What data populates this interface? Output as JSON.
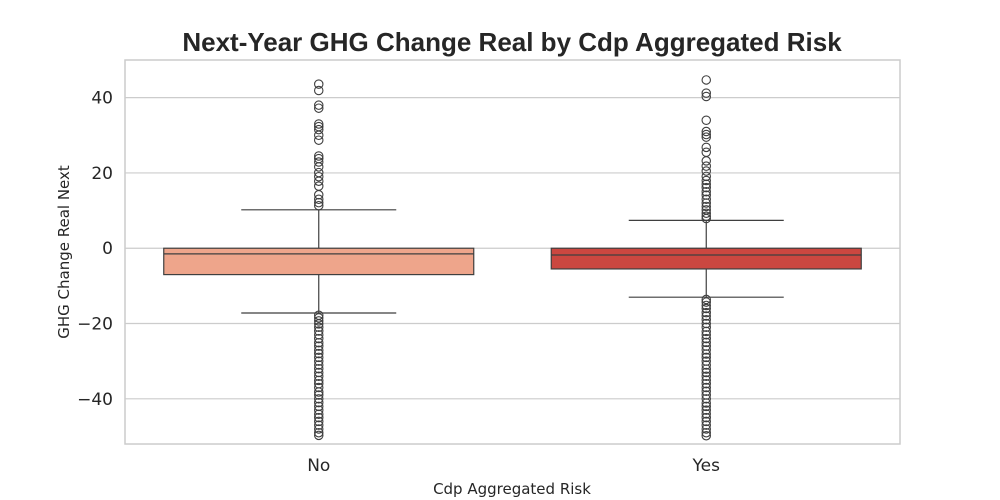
{
  "chart_data": {
    "type": "box",
    "title": "Next-Year GHG Change Real by Cdp Aggregated Risk",
    "xlabel": "Cdp Aggregated Risk",
    "ylabel": "GHG Change Real Next",
    "ylim": [
      -52,
      50
    ],
    "yticks": [
      {
        "value": 40,
        "label": "40"
      },
      {
        "value": 20,
        "label": "20"
      },
      {
        "value": 0,
        "label": "0"
      },
      {
        "value": -20,
        "label": "−20"
      },
      {
        "value": -40,
        "label": "−40"
      }
    ],
    "grid": true,
    "categories": [
      "No",
      "Yes"
    ],
    "boxes": [
      {
        "category": "No",
        "color": "#eea58b",
        "whisker_low": -17.2,
        "q1": -7.0,
        "median": -1.5,
        "q3": 0.0,
        "whisker_high": 10.2,
        "outliers": [
          43.6,
          41.9,
          38.0,
          37.2,
          33.0,
          32.3,
          31.5,
          30.0,
          28.7,
          24.5,
          23.8,
          22.9,
          21.6,
          20.1,
          19.0,
          17.8,
          16.5,
          14.2,
          13.0,
          12.1,
          11.3,
          -17.8,
          -18.5,
          -19.3,
          -20.1,
          -21.0,
          -22.0,
          -23.0,
          -24.0,
          -25.1,
          -26.0,
          -27.1,
          -28.0,
          -29.0,
          -30.0,
          -31.0,
          -32.0,
          -33.0,
          -34.0,
          -35.1,
          -36.0,
          -37.0,
          -38.2,
          -39.0,
          -40.0,
          -41.0,
          -42.0,
          -43.0,
          -44.1,
          -45.0,
          -46.0,
          -47.0,
          -48.0,
          -49.0,
          -49.7
        ]
      },
      {
        "category": "Yes",
        "color": "#cb4740",
        "whisker_low": -13.0,
        "q1": -5.5,
        "median": -1.8,
        "q3": 0.0,
        "whisker_high": 7.4,
        "outliers": [
          44.7,
          41.2,
          40.3,
          34.0,
          31.0,
          30.2,
          29.5,
          26.8,
          25.5,
          23.2,
          21.8,
          20.5,
          19.1,
          18.0,
          17.0,
          16.1,
          15.0,
          14.1,
          13.0,
          12.0,
          11.1,
          10.2,
          9.3,
          8.5,
          7.9,
          -13.6,
          -14.3,
          -15.2,
          -16.0,
          -17.1,
          -18.0,
          -19.0,
          -20.0,
          -21.0,
          -22.1,
          -23.0,
          -24.0,
          -25.0,
          -26.0,
          -27.0,
          -28.1,
          -29.0,
          -30.0,
          -31.0,
          -32.1,
          -33.0,
          -34.0,
          -35.0,
          -36.0,
          -37.0,
          -38.0,
          -39.0,
          -40.0,
          -41.1,
          -42.0,
          -43.0,
          -44.0,
          -45.0,
          -46.0,
          -47.0,
          -48.0,
          -49.0,
          -49.8
        ]
      }
    ]
  }
}
